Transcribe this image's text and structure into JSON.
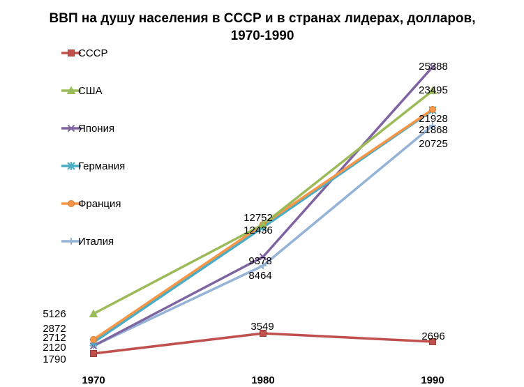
{
  "chart_data": {
    "type": "line",
    "title_lines": [
      "ВВП на душу населения в СССР и в странах лидерах, долларов,",
      "1970-1990"
    ],
    "categories": [
      "1970",
      "1980",
      "1990"
    ],
    "series": [
      {
        "name": "СССР",
        "values": [
          1790,
          3549,
          2696
        ],
        "color": "#c0504d",
        "marker": "square"
      },
      {
        "name": "США",
        "values": [
          5126,
          12752,
          23495
        ],
        "color": "#9bbb59",
        "marker": "triangle"
      },
      {
        "name": "Япония",
        "values": [
          2120,
          9378,
          25388
        ],
        "color": "#8064a2",
        "marker": "x"
      },
      {
        "name": "Германия",
        "values": [
          2712,
          12436,
          21868
        ],
        "color": "#4bacc6",
        "marker": "star"
      },
      {
        "name": "Франция",
        "values": [
          2872,
          12752,
          21928
        ],
        "color": "#f79646",
        "marker": "circle"
      },
      {
        "name": "Италия",
        "values": [
          2120,
          8464,
          20725
        ],
        "color": "#95b3d7",
        "marker": "plus"
      }
    ],
    "data_labels": [
      {
        "text": "5126"
      },
      {
        "text": "2872"
      },
      {
        "text": "2712"
      },
      {
        "text": "2120"
      },
      {
        "text": "1790"
      },
      {
        "text": "3549"
      },
      {
        "text": "12752"
      },
      {
        "text": "12436"
      },
      {
        "text": "9378"
      },
      {
        "text": "8464"
      },
      {
        "text": "2696"
      },
      {
        "text": "25388"
      },
      {
        "text": "23495"
      },
      {
        "text": "21928"
      },
      {
        "text": "21868"
      },
      {
        "text": "20725"
      }
    ],
    "ylim": [
      0,
      28000
    ],
    "grid": false,
    "legend_position": "left"
  }
}
